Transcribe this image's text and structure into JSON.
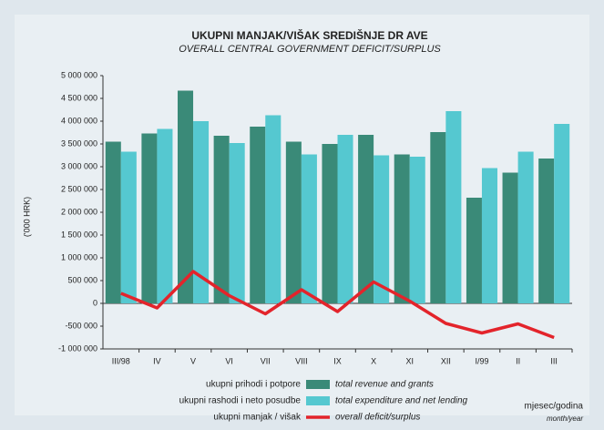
{
  "chart_data": {
    "type": "bar",
    "title": "UKUPNI MANJAK/VIŠAK SREDIŠNJE DR AVE",
    "subtitle": "OVERALL CENTRAL GOVERNMENT DEFICIT/SURPLUS",
    "y_label": "('000 HRK)",
    "x_label": "mjesec/godina",
    "x_label_en": "month/year",
    "categories": [
      "III/98",
      "IV",
      "V",
      "VI",
      "VII",
      "VIII",
      "IX",
      "X",
      "XI",
      "XII",
      "I/99",
      "II",
      "III"
    ],
    "series": [
      {
        "name": "total revenue and grants",
        "name_local": "ukupni prihodi i potpore",
        "type": "bar",
        "color": "#3a8a78",
        "values": [
          3550000,
          3730000,
          4670000,
          3680000,
          3880000,
          3550000,
          3500000,
          3700000,
          3270000,
          3760000,
          2320000,
          2870000,
          3180000
        ]
      },
      {
        "name": "total expenditure and net lending",
        "name_local": "ukupni rashodi i neto posudbe",
        "type": "bar",
        "color": "#55c8d0",
        "values": [
          3330000,
          3830000,
          4000000,
          3520000,
          4130000,
          3270000,
          3700000,
          3250000,
          3220000,
          4220000,
          2970000,
          3330000,
          3940000
        ]
      },
      {
        "name": "overall deficit/surplus",
        "name_local": "ukupni manjak / višak",
        "type": "line",
        "color": "#e3242b",
        "values": [
          220000,
          -100000,
          700000,
          170000,
          -230000,
          300000,
          -180000,
          470000,
          50000,
          -440000,
          -650000,
          -450000,
          -750000
        ]
      }
    ],
    "ylim": [
      -1000000,
      5000000
    ],
    "yticks": [
      {
        "value": -1000000,
        "label": "-1 000 000"
      },
      {
        "value": -500000,
        "label": "-500 000"
      },
      0,
      {
        "value": 500000,
        "label": "500 000"
      },
      {
        "value": 1000000,
        "label": "1 000 000"
      },
      {
        "value": 1500000,
        "label": "1 500 000"
      },
      {
        "value": 2000000,
        "label": "2 000 000"
      },
      {
        "value": 2500000,
        "label": "2 500 000"
      },
      {
        "value": 3000000,
        "label": "3 000 000"
      },
      {
        "value": 3500000,
        "label": "3 500 000"
      },
      {
        "value": 4000000,
        "label": "4 000 000"
      },
      {
        "value": 4500000,
        "label": "4 500 000"
      },
      {
        "value": 5000000,
        "label": "5 000 000"
      }
    ]
  }
}
